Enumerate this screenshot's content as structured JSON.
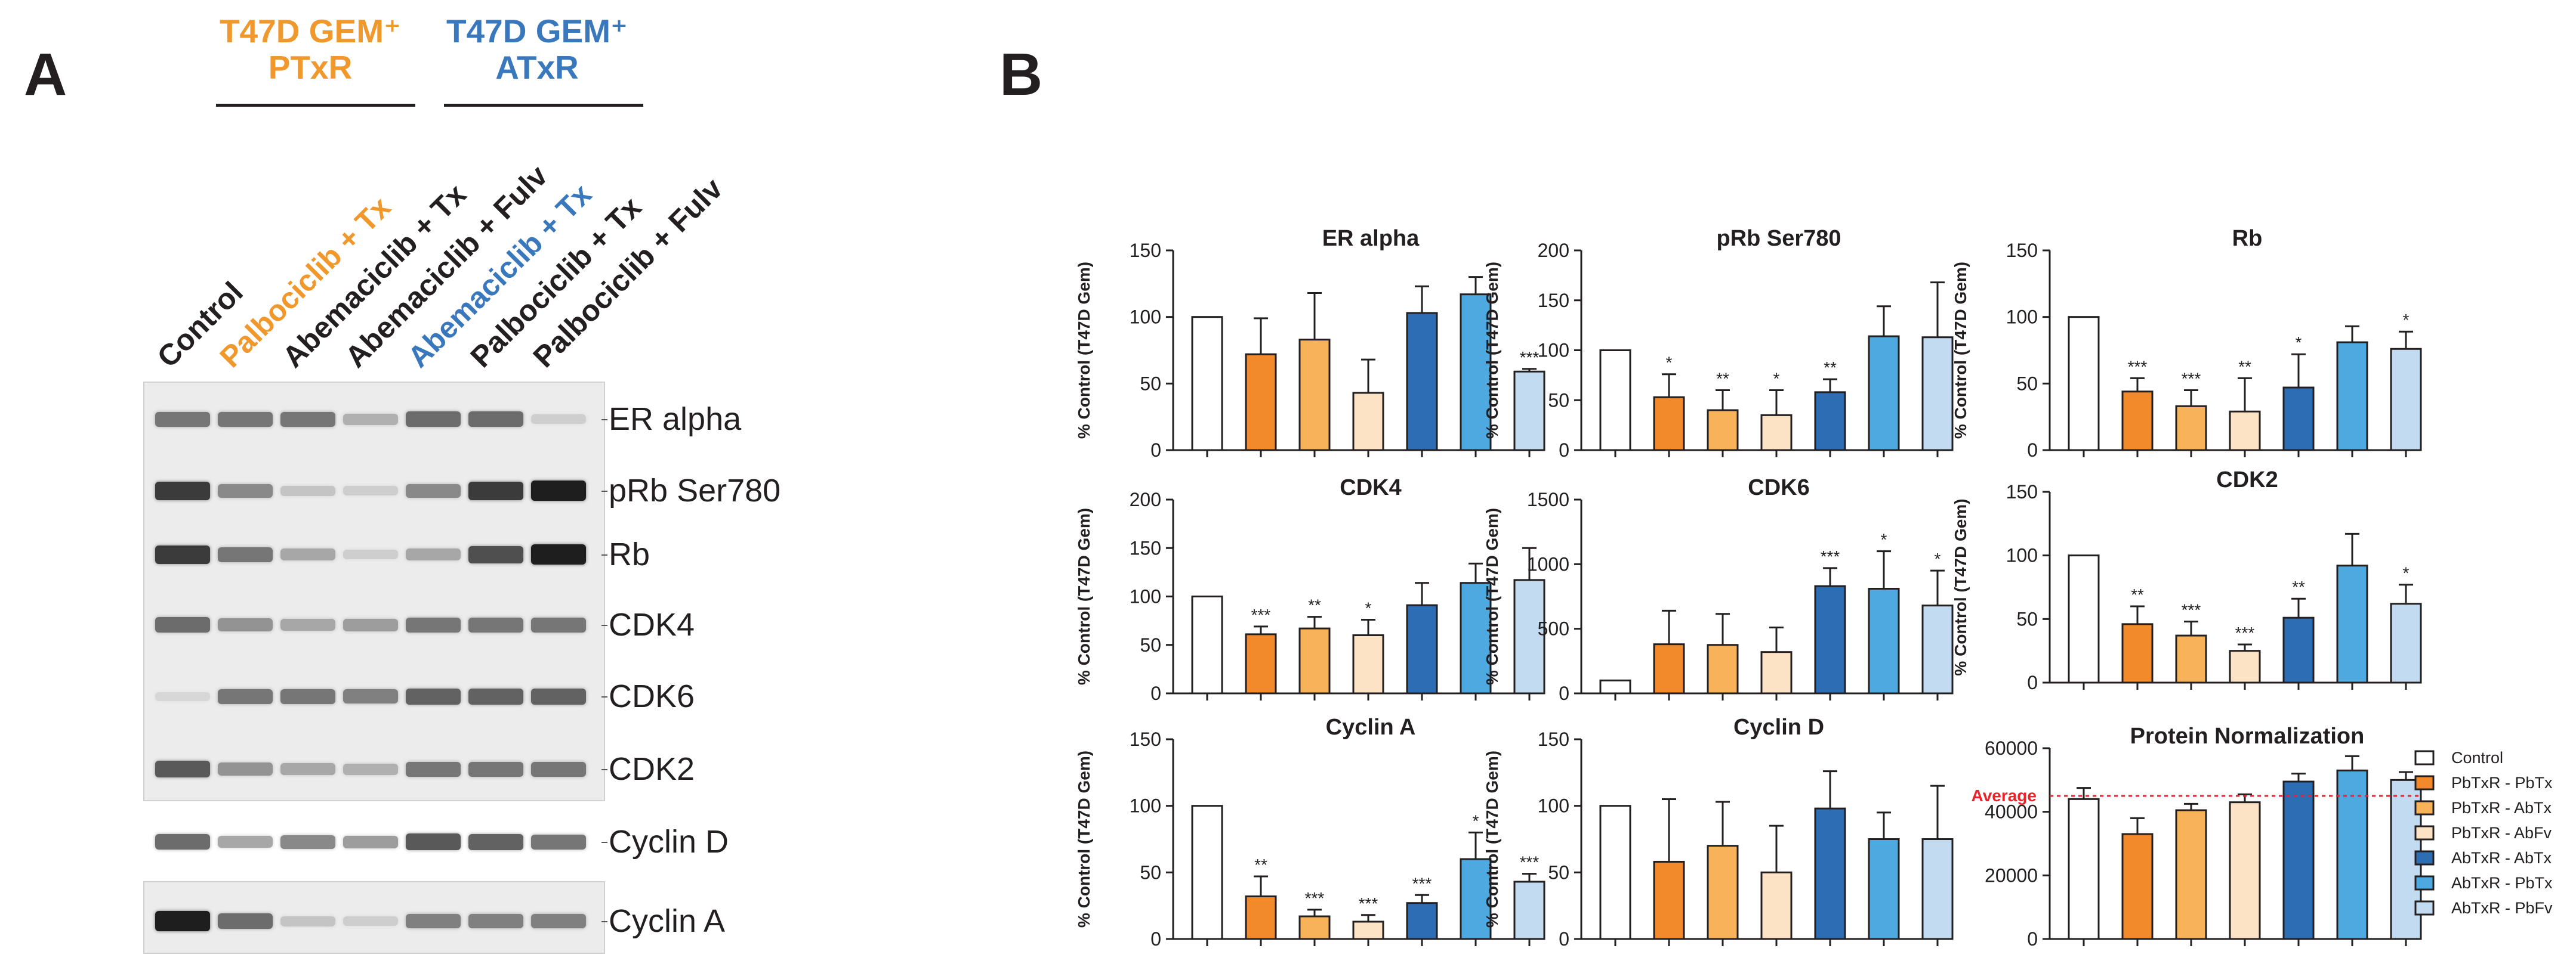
{
  "panel_a": {
    "letter": "A",
    "groups": [
      {
        "line1": "T47D GEM⁺",
        "line2": "PTxR",
        "color": "#f0982c"
      },
      {
        "line1": "T47D GEM⁺",
        "line2": "ATxR",
        "color": "#3a78be"
      }
    ],
    "lanes": [
      {
        "label": "Control",
        "color": "#231f20"
      },
      {
        "label": "Palbociclib + Tx",
        "color": "#f0982c"
      },
      {
        "label": "Abemaciclib + Tx",
        "color": "#231f20"
      },
      {
        "label": "Abemaciclib + Fulv",
        "color": "#231f20"
      },
      {
        "label": "Abemaciclib + Tx",
        "color": "#3a78be"
      },
      {
        "label": "Palbociclib + Tx",
        "color": "#231f20"
      },
      {
        "label": "Palbociclib + Fulv",
        "color": "#231f20"
      }
    ],
    "proteins": [
      {
        "label": "ER alpha",
        "intensity": [
          0.55,
          0.55,
          0.55,
          0.25,
          0.6,
          0.6,
          0.1
        ]
      },
      {
        "label": "pRb Ser780",
        "intensity": [
          0.85,
          0.45,
          0.15,
          0.1,
          0.45,
          0.85,
          1.0
        ]
      },
      {
        "label": "Rb",
        "intensity": [
          0.85,
          0.55,
          0.3,
          0.1,
          0.3,
          0.75,
          1.0
        ]
      },
      {
        "label": "CDK4",
        "intensity": [
          0.6,
          0.4,
          0.3,
          0.35,
          0.55,
          0.55,
          0.55
        ]
      },
      {
        "label": "CDK6",
        "intensity": [
          0.05,
          0.55,
          0.55,
          0.5,
          0.65,
          0.65,
          0.65
        ]
      },
      {
        "label": "CDK2",
        "intensity": [
          0.7,
          0.4,
          0.3,
          0.25,
          0.55,
          0.55,
          0.55
        ]
      },
      {
        "label": "Cyclin D",
        "intensity": [
          0.6,
          0.3,
          0.45,
          0.35,
          0.7,
          0.65,
          0.55
        ]
      },
      {
        "label": "Cyclin A",
        "intensity": [
          1.0,
          0.6,
          0.15,
          0.1,
          0.5,
          0.5,
          0.5
        ]
      }
    ]
  },
  "panel_b": {
    "letter": "B",
    "ylabel": "% Control (T47D Gem)",
    "average_label": "Average",
    "legend": [
      {
        "label": "Control",
        "color": "#ffffff"
      },
      {
        "label": "PbTxR - PbTx",
        "color": "#f28a2b"
      },
      {
        "label": "PbTxR - AbTx",
        "color": "#f7b25a"
      },
      {
        "label": "PbTxR - AbFv",
        "color": "#fde3c5"
      },
      {
        "label": "AbTxR - AbTx",
        "color": "#2d6db4"
      },
      {
        "label": "AbTxR - PbTx",
        "color": "#4ea9e0"
      },
      {
        "label": "AbTxR - PbFv",
        "color": "#c3dbf1"
      }
    ]
  },
  "chart_data": [
    {
      "type": "bar",
      "title": "ER alpha",
      "ylabel": "% Control (T47D Gem)",
      "ylim": [
        0,
        150
      ],
      "yticks": [
        "0",
        "50",
        "100",
        "150"
      ],
      "values": [
        100,
        72,
        83,
        43,
        103,
        117,
        59
      ],
      "errors": [
        0,
        27,
        35,
        25,
        20,
        13,
        2
      ],
      "stars": [
        "",
        "",
        "",
        "",
        "",
        "",
        "***"
      ]
    },
    {
      "type": "bar",
      "title": "pRb Ser780",
      "ylabel": "% Control (T47D Gem)",
      "ylim": [
        0,
        200
      ],
      "yticks": [
        "0",
        "50",
        "100",
        "150",
        "200"
      ],
      "values": [
        100,
        53,
        40,
        35,
        58,
        114,
        113
      ],
      "errors": [
        0,
        23,
        20,
        25,
        13,
        30,
        55
      ],
      "stars": [
        "",
        "*",
        "**",
        "*",
        "**",
        "",
        ""
      ]
    },
    {
      "type": "bar",
      "title": "Rb",
      "ylabel": "% Control (T47D Gem)",
      "ylim": [
        0,
        150
      ],
      "yticks": [
        "0",
        "50",
        "100",
        "150"
      ],
      "values": [
        100,
        44,
        33,
        29,
        47,
        81,
        76
      ],
      "errors": [
        0,
        10,
        12,
        25,
        25,
        12,
        13
      ],
      "stars": [
        "",
        "***",
        "***",
        "**",
        "*",
        "",
        "*"
      ]
    },
    {
      "type": "bar",
      "title": "CDK4",
      "ylabel": "% Control (T47D Gem)",
      "ylim": [
        0,
        200
      ],
      "yticks": [
        "0",
        "50",
        "100",
        "150",
        "200"
      ],
      "values": [
        100,
        61,
        67,
        60,
        91,
        114,
        117
      ],
      "errors": [
        0,
        8,
        12,
        16,
        23,
        20,
        33
      ],
      "stars": [
        "",
        "***",
        "**",
        "*",
        "",
        "",
        ""
      ]
    },
    {
      "type": "bar",
      "title": "CDK6",
      "ylabel": "% Control (T47D Gem)",
      "ylim": [
        0,
        1500
      ],
      "yticks": [
        "0",
        "500",
        "1000",
        "1500"
      ],
      "values": [
        100,
        380,
        375,
        320,
        830,
        810,
        680
      ],
      "errors": [
        0,
        260,
        240,
        190,
        140,
        290,
        270
      ],
      "stars": [
        "",
        "",
        "",
        "",
        "***",
        "*",
        "*"
      ]
    },
    {
      "type": "bar",
      "title": "CDK2",
      "ylabel": "% Control (T47D Gem)",
      "ylim": [
        0,
        150
      ],
      "yticks": [
        "0",
        "50",
        "100",
        "150"
      ],
      "values": [
        100,
        46,
        37,
        25,
        51,
        92,
        62
      ],
      "errors": [
        0,
        14,
        11,
        5,
        15,
        25,
        15
      ],
      "stars": [
        "",
        "**",
        "***",
        "***",
        "**",
        "",
        "*"
      ]
    },
    {
      "type": "bar",
      "title": "Cyclin A",
      "ylabel": "% Control (T47D Gem)",
      "ylim": [
        0,
        150
      ],
      "yticks": [
        "0",
        "50",
        "100",
        "150"
      ],
      "values": [
        100,
        32,
        17,
        13,
        27,
        60,
        43
      ],
      "errors": [
        0,
        15,
        5,
        5,
        6,
        20,
        6
      ],
      "stars": [
        "",
        "**",
        "***",
        "***",
        "***",
        "*",
        "***"
      ]
    },
    {
      "type": "bar",
      "title": "Cyclin D",
      "ylabel": "% Control (T47D Gem)",
      "ylim": [
        0,
        150
      ],
      "yticks": [
        "0",
        "50",
        "100",
        "150"
      ],
      "values": [
        100,
        58,
        70,
        50,
        98,
        75,
        75
      ],
      "errors": [
        0,
        47,
        33,
        35,
        28,
        20,
        40
      ],
      "stars": [
        "",
        "",
        "",
        "",
        "",
        "",
        ""
      ]
    },
    {
      "type": "bar",
      "title": "Protein Normalization",
      "ylabel": "",
      "ylim": [
        0,
        60000
      ],
      "yticks": [
        "0",
        "20000",
        "40000",
        "60000"
      ],
      "values": [
        44000,
        33000,
        40500,
        43000,
        49500,
        53000,
        50000
      ],
      "errors": [
        3500,
        5000,
        2000,
        2500,
        2500,
        4500,
        2500
      ],
      "stars": [
        "",
        "",
        "",
        "",
        "",
        "",
        ""
      ],
      "average": 45000
    }
  ]
}
